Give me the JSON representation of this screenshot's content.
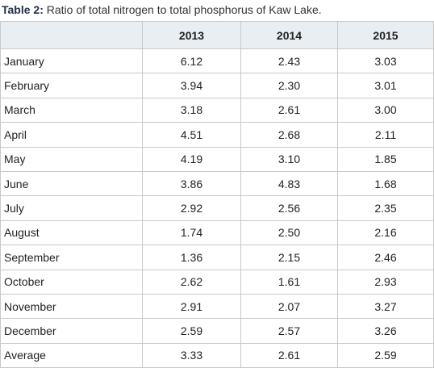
{
  "caption": {
    "label": "Table 2:",
    "text": "Ratio of total nitrogen to total phosphorus of Kaw Lake."
  },
  "table": {
    "columns": [
      "2013",
      "2014",
      "2015"
    ],
    "rows": [
      [
        "January",
        "6.12",
        "2.43",
        "3.03"
      ],
      [
        "February",
        "3.94",
        "2.30",
        "3.01"
      ],
      [
        "March",
        "3.18",
        "2.61",
        "3.00"
      ],
      [
        "April",
        "4.51",
        "2.68",
        "2.11"
      ],
      [
        "May",
        "4.19",
        "3.10",
        "1.85"
      ],
      [
        "June",
        "3.86",
        "4.83",
        "1.68"
      ],
      [
        "July",
        "2.92",
        "2.56",
        "2.35"
      ],
      [
        "August",
        "1.74",
        "2.50",
        "2.16"
      ],
      [
        "September",
        "1.36",
        "2.15",
        "2.46"
      ],
      [
        "October",
        "2.62",
        "1.61",
        "2.93"
      ],
      [
        "November",
        "2.91",
        "2.07",
        "3.27"
      ],
      [
        "December",
        "2.59",
        "2.57",
        "3.26"
      ],
      [
        "Average",
        "3.33",
        "2.61",
        "2.59"
      ]
    ]
  }
}
